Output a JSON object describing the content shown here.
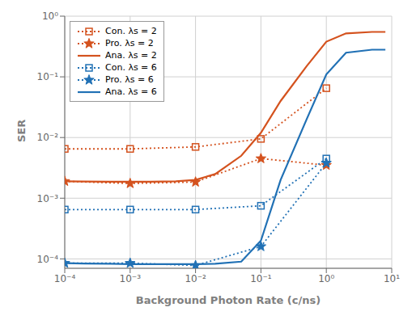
{
  "chart_data": {
    "type": "line",
    "xlabel": "Background Photon Rate (c/ns)",
    "ylabel": "SER",
    "log": true,
    "grid": true,
    "legend": "upper left",
    "xlim": [
      0.0001,
      10
    ],
    "ylim": [
      7e-05,
      1.0
    ],
    "xticks": [
      {
        "value": 0.0001,
        "label": "10⁻⁴"
      },
      {
        "value": 0.001,
        "label": "10⁻³"
      },
      {
        "value": 0.01,
        "label": "10⁻²"
      },
      {
        "value": 0.1,
        "label": "10⁻¹"
      },
      {
        "value": 1,
        "label": "10⁰"
      },
      {
        "value": 10,
        "label": "10¹"
      }
    ],
    "yticks": [
      {
        "value": 0.0001,
        "label": "10⁻⁴"
      },
      {
        "value": 0.001,
        "label": "10⁻³"
      },
      {
        "value": 0.01,
        "label": "10⁻²"
      },
      {
        "value": 0.1,
        "label": "10⁻¹"
      },
      {
        "value": 1,
        "label": "10⁰"
      }
    ],
    "series": [
      {
        "name": "Con. λs = 2",
        "color": "#D4521E",
        "line_style": "dotted",
        "marker": "square",
        "x": [
          0.0001,
          0.001,
          0.01,
          0.1,
          1
        ],
        "values": [
          0.0065,
          0.0065,
          0.007,
          0.0095,
          0.065
        ]
      },
      {
        "name": "Pro. λs = 2",
        "color": "#D4521E",
        "line_style": "dotted",
        "marker": "star",
        "x": [
          0.0001,
          0.001,
          0.01,
          0.1,
          1
        ],
        "values": [
          0.0019,
          0.00175,
          0.00185,
          0.0045,
          0.0035
        ]
      },
      {
        "name": "Ana. λs = 2",
        "color": "#D4521E",
        "line_style": "solid",
        "marker": "none",
        "x": [
          0.0001,
          0.0002,
          0.0005,
          0.001,
          0.002,
          0.005,
          0.01,
          0.02,
          0.05,
          0.1,
          0.2,
          0.5,
          1,
          2,
          5,
          8
        ],
        "values": [
          0.0019,
          0.00188,
          0.00187,
          0.00187,
          0.00187,
          0.0019,
          0.002,
          0.0025,
          0.005,
          0.012,
          0.04,
          0.15,
          0.38,
          0.52,
          0.55,
          0.55
        ]
      },
      {
        "name": "Con. λs = 6",
        "color": "#2171B5",
        "line_style": "dotted",
        "marker": "square",
        "x": [
          0.0001,
          0.001,
          0.01,
          0.1,
          1
        ],
        "values": [
          0.00065,
          0.00065,
          0.00065,
          0.00075,
          0.0045
        ]
      },
      {
        "name": "Pro. λs = 6",
        "color": "#2171B5",
        "line_style": "dotted",
        "marker": "star",
        "x": [
          0.0001,
          0.001,
          0.01,
          0.1,
          1
        ],
        "values": [
          8.5e-05,
          8.5e-05,
          7.8e-05,
          0.00016,
          0.0038
        ]
      },
      {
        "name": "Ana. λs = 6",
        "color": "#2171B5",
        "line_style": "solid",
        "marker": "none",
        "x": [
          0.0001,
          0.0002,
          0.0005,
          0.001,
          0.002,
          0.005,
          0.01,
          0.02,
          0.05,
          0.1,
          0.2,
          0.5,
          1,
          2,
          5,
          8
        ],
        "values": [
          8.5e-05,
          8.4e-05,
          8.3e-05,
          8.2e-05,
          8.2e-05,
          8.2e-05,
          8.2e-05,
          8.3e-05,
          9e-05,
          0.0002,
          0.002,
          0.02,
          0.11,
          0.25,
          0.28,
          0.28
        ]
      }
    ]
  }
}
